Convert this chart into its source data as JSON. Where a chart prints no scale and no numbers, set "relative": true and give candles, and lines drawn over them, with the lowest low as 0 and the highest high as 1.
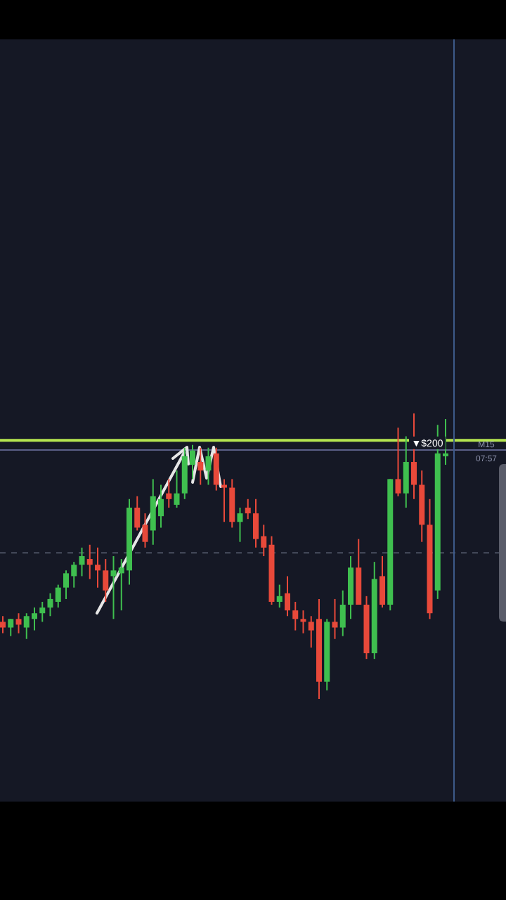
{
  "chart_data": {
    "type": "candlestick",
    "relative": true,
    "categories": [
      null,
      null,
      null,
      null,
      null,
      null,
      null,
      null,
      null,
      null,
      null,
      null,
      null,
      null,
      null,
      null,
      null,
      null,
      null,
      null,
      null,
      null,
      null,
      null,
      null,
      null,
      null,
      null,
      null,
      null,
      null,
      null,
      null,
      null,
      null,
      null,
      null,
      null,
      null,
      null,
      null,
      null,
      null,
      null,
      null,
      null,
      null,
      null,
      null,
      null,
      null,
      null,
      null,
      null,
      null,
      null,
      null
    ],
    "ohlc": [
      [
        0.27,
        0.29,
        0.23,
        0.25
      ],
      [
        0.25,
        0.28,
        0.22,
        0.28
      ],
      [
        0.28,
        0.3,
        0.23,
        0.26
      ],
      [
        0.25,
        0.3,
        0.21,
        0.29
      ],
      [
        0.28,
        0.32,
        0.24,
        0.3
      ],
      [
        0.3,
        0.34,
        0.27,
        0.32
      ],
      [
        0.32,
        0.37,
        0.29,
        0.35
      ],
      [
        0.34,
        0.4,
        0.32,
        0.39
      ],
      [
        0.39,
        0.45,
        0.35,
        0.44
      ],
      [
        0.43,
        0.48,
        0.39,
        0.47
      ],
      [
        0.47,
        0.53,
        0.43,
        0.5
      ],
      [
        0.49,
        0.54,
        0.42,
        0.47
      ],
      [
        0.47,
        0.53,
        0.39,
        0.45
      ],
      [
        0.45,
        0.49,
        0.34,
        0.38
      ],
      [
        0.43,
        0.5,
        0.28,
        0.45
      ],
      [
        0.44,
        0.49,
        0.31,
        0.46
      ],
      [
        0.45,
        0.7,
        0.4,
        0.67
      ],
      [
        0.67,
        0.71,
        0.59,
        0.6
      ],
      [
        0.61,
        0.65,
        0.53,
        0.55
      ],
      [
        0.59,
        0.77,
        0.54,
        0.71
      ],
      [
        0.64,
        0.75,
        0.6,
        0.7
      ],
      [
        0.72,
        0.77,
        0.67,
        0.7
      ],
      [
        0.68,
        0.8,
        0.67,
        0.72
      ],
      [
        0.72,
        0.88,
        0.7,
        0.85
      ],
      [
        0.82,
        0.89,
        0.77,
        0.87
      ],
      [
        0.83,
        0.88,
        0.75,
        0.8
      ],
      [
        0.8,
        0.88,
        0.75,
        0.85
      ],
      [
        0.86,
        0.88,
        0.73,
        0.75
      ],
      [
        0.75,
        0.77,
        0.62,
        0.74
      ],
      [
        0.74,
        0.77,
        0.6,
        0.62
      ],
      [
        0.62,
        0.67,
        0.55,
        0.65
      ],
      [
        0.67,
        0.7,
        0.63,
        0.65
      ],
      [
        0.65,
        0.7,
        0.53,
        0.56
      ],
      [
        0.57,
        0.61,
        0.5,
        0.53
      ],
      [
        0.54,
        0.57,
        0.33,
        0.34
      ],
      [
        0.34,
        0.4,
        0.32,
        0.36
      ],
      [
        0.37,
        0.43,
        0.29,
        0.31
      ],
      [
        0.31,
        0.34,
        0.24,
        0.28
      ],
      [
        0.28,
        0.31,
        0.23,
        0.27
      ],
      [
        0.27,
        0.29,
        0.18,
        0.24
      ],
      [
        0.28,
        0.35,
        0,
        0.06
      ],
      [
        0.06,
        0.28,
        0.03,
        0.27
      ],
      [
        0.27,
        0.35,
        0.21,
        0.25
      ],
      [
        0.25,
        0.38,
        0.22,
        0.33
      ],
      [
        0.33,
        0.5,
        0.28,
        0.46
      ],
      [
        0.46,
        0.56,
        0.33,
        0.33
      ],
      [
        0.33,
        0.36,
        0.14,
        0.16
      ],
      [
        0.16,
        0.48,
        0.14,
        0.42
      ],
      [
        0.43,
        0.5,
        0.32,
        0.33
      ],
      [
        0.33,
        0.77,
        0.31,
        0.77
      ],
      [
        0.77,
        0.95,
        0.71,
        0.72
      ],
      [
        0.72,
        0.92,
        0.67,
        0.83
      ],
      [
        0.83,
        1,
        0.7,
        0.75
      ],
      [
        0.75,
        0.8,
        0.55,
        0.61
      ],
      [
        0.61,
        0.7,
        0.28,
        0.3
      ],
      [
        0.38,
        0.96,
        0.35,
        0.86
      ],
      [
        0.85,
        0.98,
        0.82,
        0.86
      ]
    ],
    "colors": [
      "#e8493a",
      "#3fbf4f",
      "#e8493a",
      "#3fbf4f",
      "#3fbf4f",
      "#3fbf4f",
      "#3fbf4f",
      "#3fbf4f",
      "#3fbf4f",
      "#3fbf4f",
      "#3fbf4f",
      "#e8493a",
      "#e8493a",
      "#e8493a",
      "#3fbf4f",
      "#3fbf4f",
      "#3fbf4f",
      "#e8493a",
      "#e8493a",
      "#3fbf4f",
      "#3fbf4f",
      "#e8493a",
      "#3fbf4f",
      "#3fbf4f",
      "#3fbf4f",
      "#e8493a",
      "#3fbf4f",
      "#e8493a",
      "#e8493a",
      "#e8493a",
      "#3fbf4f",
      "#e8493a",
      "#e8493a",
      "#e8493a",
      "#e8493a",
      "#3fbf4f",
      "#e8493a",
      "#e8493a",
      "#e8493a",
      "#e8493a",
      "#e8493a",
      "#3fbf4f",
      "#e8493a",
      "#3fbf4f",
      "#3fbf4f",
      "#e8493a",
      "#e8493a",
      "#3fbf4f",
      "#e8493a",
      "#3fbf4f",
      "#e8493a",
      "#3fbf4f",
      "#e8493a",
      "#e8493a",
      "#e8493a",
      "#3fbf4f",
      "#3fbf4f"
    ],
    "ref_lines": [
      {
        "axis": "y",
        "value": 0.906,
        "color": "#b5e550"
      },
      {
        "axis": "y",
        "value": 0.872,
        "color": "#5c6088"
      },
      {
        "axis": "y",
        "value": 0.512,
        "color": "#4a4f60",
        "line_style": "dashed"
      }
    ],
    "annotations": [
      "▼$200",
      "M15",
      "07:57"
    ]
  }
}
